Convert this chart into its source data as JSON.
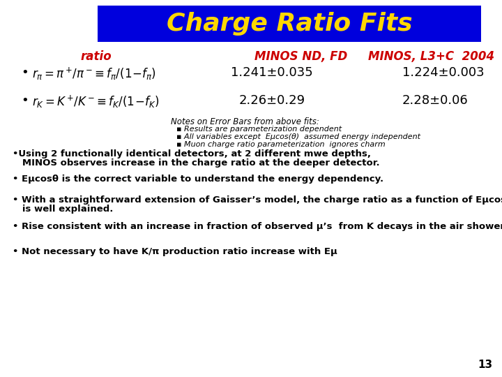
{
  "title": "Charge Ratio Fits",
  "title_color": "#FFD700",
  "title_bg_color": "#0000DD",
  "header_color": "#CC0000",
  "body_color": "#000000",
  "bg_color": "#FFFFFF",
  "col1_header": "ratio",
  "col2_header": "MINOS ND, FD",
  "col3_header": "MINOS, L3+C  2004",
  "row1_col2": "1.241±0.035",
  "row1_col3": "1.224±0.003",
  "row2_col2": "2.26±0.29",
  "row2_col3": "2.28±0.06",
  "notes_header": "Notes on Error Bars from above fits:",
  "note1": "▪ Results are parameterization dependent",
  "note2": "▪ All variables except  Eμcos(θ)  assumed energy independent",
  "note3": "▪ Muon charge ratio parameterization  ignores charm",
  "bullet1_line1": "•Using 2 functionally identical detectors, at 2 different mwe depths,",
  "bullet1_line2": "   MINOS observes increase in the charge ratio at the deeper detector.",
  "bullet2": "• Eμcosθ is the correct variable to understand the energy dependency.",
  "bullet3_line1": "• With a straightforward extension of Gaisser’s model, the charge ratio as a function of Eμcosθ",
  "bullet3_line2": "   is well explained.",
  "bullet4": "• Rise consistent with an increase in fraction of observed μ’s  from K decays in the air shower.",
  "bullet5": "• Not necessary to have K/π production ratio increase with Eμ",
  "page_num": "13"
}
